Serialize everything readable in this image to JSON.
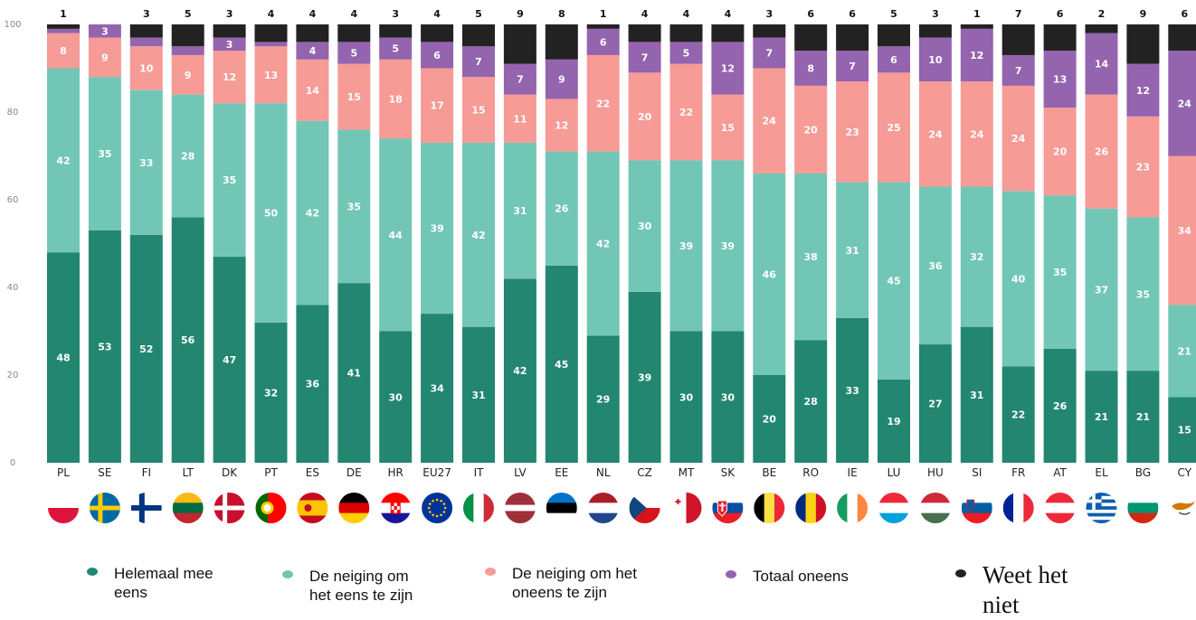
{
  "chart_data": {
    "type": "bar",
    "stacked": true,
    "categories": [
      "PL",
      "SE",
      "FI",
      "LT",
      "DK",
      "PT",
      "ES",
      "DE",
      "HR",
      "EU27",
      "IT",
      "LV",
      "EE",
      "NL",
      "CZ",
      "MT",
      "SK",
      "BE",
      "RO",
      "IE",
      "LU",
      "HU",
      "SI",
      "FR",
      "AT",
      "EL",
      "BG",
      "CY"
    ],
    "series": [
      {
        "name": "Helemaal mee eens",
        "color": "#238670",
        "values": [
          48,
          53,
          52,
          56,
          47,
          32,
          36,
          41,
          30,
          34,
          31,
          42,
          45,
          29,
          39,
          30,
          30,
          20,
          28,
          33,
          19,
          27,
          31,
          22,
          26,
          21,
          21,
          15
        ]
      },
      {
        "name": "De neiging om het eens te zijn",
        "color": "#72c6b6",
        "values": [
          42,
          35,
          33,
          28,
          35,
          50,
          42,
          35,
          44,
          39,
          42,
          31,
          26,
          42,
          30,
          39,
          39,
          46,
          38,
          31,
          45,
          36,
          32,
          40,
          35,
          37,
          35,
          21
        ]
      },
      {
        "name": "De neiging om het oneens te zijn",
        "color": "#f69b96",
        "values": [
          8,
          9,
          10,
          9,
          12,
          13,
          14,
          15,
          18,
          17,
          15,
          11,
          12,
          22,
          20,
          22,
          15,
          24,
          20,
          23,
          25,
          24,
          24,
          24,
          20,
          26,
          23,
          34
        ]
      },
      {
        "name": "Totaal oneens",
        "color": "#9564ae",
        "values": [
          1,
          3,
          2,
          2,
          3,
          1,
          4,
          5,
          5,
          6,
          7,
          7,
          9,
          6,
          7,
          5,
          12,
          7,
          8,
          7,
          6,
          10,
          12,
          7,
          13,
          14,
          12,
          24
        ]
      },
      {
        "name": "Weet het niet",
        "color": "#222222",
        "values": [
          1,
          0,
          3,
          5,
          3,
          4,
          4,
          4,
          3,
          4,
          5,
          9,
          8,
          1,
          4,
          4,
          4,
          3,
          6,
          6,
          5,
          3,
          1,
          7,
          6,
          2,
          9,
          6
        ]
      }
    ],
    "segment_labels": [
      [
        "48",
        "42",
        "8",
        "",
        ""
      ],
      [
        "53",
        "35",
        "9",
        "3",
        ""
      ],
      [
        "52",
        "33",
        "10",
        "",
        ""
      ],
      [
        "56",
        "28",
        "9",
        "",
        ""
      ],
      [
        "47",
        "35",
        "12",
        "3",
        ""
      ],
      [
        "32",
        "50",
        "13",
        "",
        ""
      ],
      [
        "36",
        "42",
        "14",
        "4",
        ""
      ],
      [
        "41",
        "35",
        "15",
        "5",
        ""
      ],
      [
        "30",
        "44",
        "18",
        "5",
        ""
      ],
      [
        "34",
        "39",
        "17",
        "6",
        ""
      ],
      [
        "31",
        "42",
        "15",
        "7",
        ""
      ],
      [
        "42",
        "31",
        "11",
        "7",
        ""
      ],
      [
        "45",
        "26",
        "12",
        "9",
        ""
      ],
      [
        "29",
        "42",
        "22",
        "6",
        ""
      ],
      [
        "39",
        "30",
        "20",
        "7",
        ""
      ],
      [
        "30",
        "39",
        "22",
        "5",
        ""
      ],
      [
        "30",
        "39",
        "15",
        "12",
        ""
      ],
      [
        "20",
        "46",
        "24",
        "7",
        ""
      ],
      [
        "28",
        "38",
        "20",
        "8",
        ""
      ],
      [
        "33",
        "31",
        "23",
        "7",
        ""
      ],
      [
        "19",
        "45",
        "25",
        "6",
        ""
      ],
      [
        "27",
        "36",
        "24",
        "10",
        ""
      ],
      [
        "31",
        "32",
        "24",
        "12",
        ""
      ],
      [
        "22",
        "40",
        "24",
        "7",
        ""
      ],
      [
        "26",
        "35",
        "20",
        "13",
        ""
      ],
      [
        "21",
        "37",
        "26",
        "14",
        ""
      ],
      [
        "21",
        "35",
        "23",
        "12",
        ""
      ],
      [
        "15",
        "21",
        "34",
        "24",
        ""
      ]
    ],
    "top_labels": [
      "1",
      "",
      "3",
      "5",
      "3",
      "4",
      "4",
      "4",
      "3",
      "4",
      "5",
      "9",
      "8",
      "1",
      "4",
      "4",
      "4",
      "3",
      "6",
      "6",
      "5",
      "3",
      "1",
      "7",
      "6",
      "2",
      "9",
      "6"
    ],
    "yticks": [
      "0",
      "20",
      "40",
      "60",
      "80",
      "100"
    ],
    "ylim": [
      0,
      100
    ],
    "grid": false,
    "legend_position": "bottom"
  },
  "flags": [
    {
      "code": "PL",
      "icon": "flag-pl-icon"
    },
    {
      "code": "SE",
      "icon": "flag-se-icon"
    },
    {
      "code": "FI",
      "icon": "flag-fi-icon"
    },
    {
      "code": "LT",
      "icon": "flag-lt-icon"
    },
    {
      "code": "DK",
      "icon": "flag-dk-icon"
    },
    {
      "code": "PT",
      "icon": "flag-pt-icon"
    },
    {
      "code": "ES",
      "icon": "flag-es-icon"
    },
    {
      "code": "DE",
      "icon": "flag-de-icon"
    },
    {
      "code": "HR",
      "icon": "flag-hr-icon"
    },
    {
      "code": "EU27",
      "icon": "flag-eu-icon"
    },
    {
      "code": "IT",
      "icon": "flag-it-icon"
    },
    {
      "code": "LV",
      "icon": "flag-lv-icon"
    },
    {
      "code": "EE",
      "icon": "flag-ee-icon"
    },
    {
      "code": "NL",
      "icon": "flag-nl-icon"
    },
    {
      "code": "CZ",
      "icon": "flag-cz-icon"
    },
    {
      "code": "MT",
      "icon": "flag-mt-icon"
    },
    {
      "code": "SK",
      "icon": "flag-sk-icon"
    },
    {
      "code": "BE",
      "icon": "flag-be-icon"
    },
    {
      "code": "RO",
      "icon": "flag-ro-icon"
    },
    {
      "code": "IE",
      "icon": "flag-ie-icon"
    },
    {
      "code": "LU",
      "icon": "flag-lu-icon"
    },
    {
      "code": "HU",
      "icon": "flag-hu-icon"
    },
    {
      "code": "SI",
      "icon": "flag-si-icon"
    },
    {
      "code": "FR",
      "icon": "flag-fr-icon"
    },
    {
      "code": "AT",
      "icon": "flag-at-icon"
    },
    {
      "code": "EL",
      "icon": "flag-el-icon"
    },
    {
      "code": "BG",
      "icon": "flag-bg-icon"
    },
    {
      "code": "CY",
      "icon": "flag-cy-icon"
    }
  ],
  "legend": [
    {
      "lines": [
        "Helemaal mee",
        "eens"
      ],
      "color": "#238670"
    },
    {
      "lines": [
        "De neiging om",
        "het eens te zijn"
      ],
      "color": "#72c6b6"
    },
    {
      "lines": [
        "De neiging om het",
        "oneens te zijn"
      ],
      "color": "#f69b96"
    },
    {
      "lines": [
        "Totaal oneens"
      ],
      "color": "#9564ae"
    },
    {
      "lines": [
        "Weet het",
        "niet"
      ],
      "color": "#222222"
    }
  ]
}
